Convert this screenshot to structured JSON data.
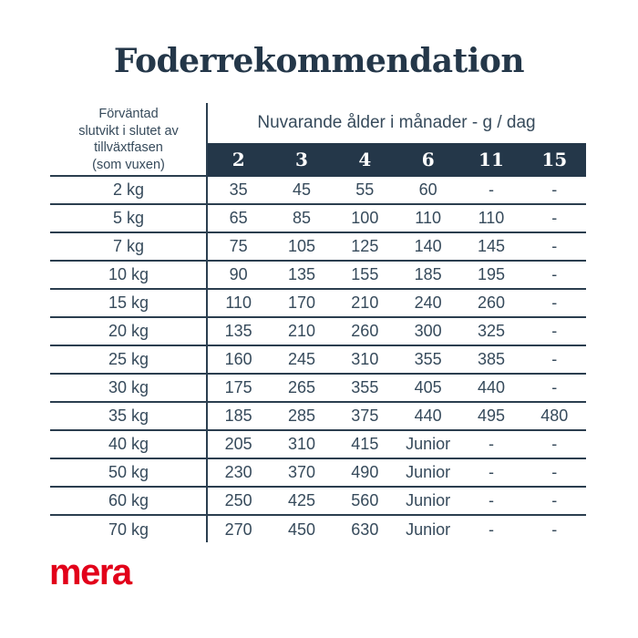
{
  "title": "Foderrekommendation",
  "table": {
    "corner_header_lines": [
      "Förväntad",
      "slutvikt i slutet av",
      "tillväxtfasen",
      "(som vuxen)"
    ],
    "column_group_label": "Nuvarande ålder i månader - g / dag",
    "columns": [
      "2",
      "3",
      "4",
      "6",
      "11",
      "15"
    ],
    "rows": [
      {
        "weight": "2 kg",
        "values": [
          "35",
          "45",
          "55",
          "60",
          "-",
          "-"
        ]
      },
      {
        "weight": "5 kg",
        "values": [
          "65",
          "85",
          "100",
          "110",
          "110",
          "-"
        ]
      },
      {
        "weight": "7 kg",
        "values": [
          "75",
          "105",
          "125",
          "140",
          "145",
          "-"
        ]
      },
      {
        "weight": "10 kg",
        "values": [
          "90",
          "135",
          "155",
          "185",
          "195",
          "-"
        ]
      },
      {
        "weight": "15 kg",
        "values": [
          "110",
          "170",
          "210",
          "240",
          "260",
          "-"
        ]
      },
      {
        "weight": "20 kg",
        "values": [
          "135",
          "210",
          "260",
          "300",
          "325",
          "-"
        ]
      },
      {
        "weight": "25 kg",
        "values": [
          "160",
          "245",
          "310",
          "355",
          "385",
          "-"
        ]
      },
      {
        "weight": "30 kg",
        "values": [
          "175",
          "265",
          "355",
          "405",
          "440",
          "-"
        ]
      },
      {
        "weight": "35 kg",
        "values": [
          "185",
          "285",
          "375",
          "440",
          "495",
          "480"
        ]
      },
      {
        "weight": "40 kg",
        "values": [
          "205",
          "310",
          "415",
          "Junior",
          "-",
          "-"
        ]
      },
      {
        "weight": "50 kg",
        "values": [
          "230",
          "370",
          "490",
          "Junior",
          "-",
          "-"
        ]
      },
      {
        "weight": "60 kg",
        "values": [
          "250",
          "425",
          "560",
          "Junior",
          "-",
          "-"
        ]
      },
      {
        "weight": "70 kg",
        "values": [
          "270",
          "450",
          "630",
          "Junior",
          "-",
          "-"
        ]
      }
    ]
  },
  "logo": {
    "text": "mera",
    "color": "#e2001a"
  },
  "colors": {
    "navy": "#243749",
    "line": "#2b3e4f",
    "body_text": "#364a5b",
    "background": "#ffffff"
  },
  "chart_data": {
    "type": "table",
    "title": "Foderrekommendation",
    "row_header": "Förväntad slutvikt i slutet av tillväxtfasen (som vuxen)",
    "column_group": "Nuvarande ålder i månader - g / dag",
    "columns_months": [
      2,
      3,
      4,
      6,
      11,
      15
    ],
    "unit": "g / dag",
    "rows": [
      {
        "final_weight_kg": 2,
        "g_per_day": [
          35,
          45,
          55,
          60,
          null,
          null
        ]
      },
      {
        "final_weight_kg": 5,
        "g_per_day": [
          65,
          85,
          100,
          110,
          110,
          null
        ]
      },
      {
        "final_weight_kg": 7,
        "g_per_day": [
          75,
          105,
          125,
          140,
          145,
          null
        ]
      },
      {
        "final_weight_kg": 10,
        "g_per_day": [
          90,
          135,
          155,
          185,
          195,
          null
        ]
      },
      {
        "final_weight_kg": 15,
        "g_per_day": [
          110,
          170,
          210,
          240,
          260,
          null
        ]
      },
      {
        "final_weight_kg": 20,
        "g_per_day": [
          135,
          210,
          260,
          300,
          325,
          null
        ]
      },
      {
        "final_weight_kg": 25,
        "g_per_day": [
          160,
          245,
          310,
          355,
          385,
          null
        ]
      },
      {
        "final_weight_kg": 30,
        "g_per_day": [
          175,
          265,
          355,
          405,
          440,
          null
        ]
      },
      {
        "final_weight_kg": 35,
        "g_per_day": [
          185,
          285,
          375,
          440,
          495,
          480
        ]
      },
      {
        "final_weight_kg": 40,
        "g_per_day": [
          205,
          310,
          415,
          "Junior",
          null,
          null
        ]
      },
      {
        "final_weight_kg": 50,
        "g_per_day": [
          230,
          370,
          490,
          "Junior",
          null,
          null
        ]
      },
      {
        "final_weight_kg": 60,
        "g_per_day": [
          250,
          425,
          560,
          "Junior",
          null,
          null
        ]
      },
      {
        "final_weight_kg": 70,
        "g_per_day": [
          270,
          450,
          630,
          "Junior",
          null,
          null
        ]
      }
    ]
  }
}
